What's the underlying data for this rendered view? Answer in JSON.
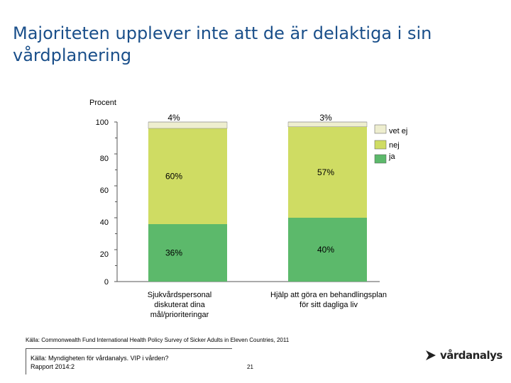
{
  "header": {
    "title": "Majoriteten upplever inte att de är delaktiga i sin vårdplanering"
  },
  "chart_data": {
    "type": "bar",
    "stacked": true,
    "title": "Majoriteten upplever inte att de är delaktiga i sin vårdplanering",
    "ylabel": "Procent",
    "xlabel": "",
    "ylim": [
      0,
      100
    ],
    "yticks": [
      "0",
      "20",
      "40",
      "60",
      "80",
      "100"
    ],
    "categories": [
      "Sjukvårdspersonal diskuterat dina mål/prioriteringar",
      "Hjälp att göra en behandlingsplan för sitt dagliga liv"
    ],
    "category_lines": [
      [
        "Sjukvårdspersonal",
        "diskuterat dina",
        "mål/prioriteringar"
      ],
      [
        "Hjälp att göra en behandlingsplan",
        "för sitt dagliga liv"
      ]
    ],
    "series": [
      {
        "name": "ja",
        "color": "#5cb96b",
        "values": [
          36,
          40
        ],
        "labels": [
          "36%",
          "40%"
        ]
      },
      {
        "name": "nej",
        "color": "#cfdc63",
        "values": [
          60,
          57
        ],
        "labels": [
          "60%",
          "57%"
        ]
      },
      {
        "name": "vet ej",
        "color": "#eeeecf",
        "values": [
          4,
          3
        ],
        "labels": [
          "4%",
          "3%"
        ]
      }
    ],
    "legend": {
      "position": "top-right",
      "entries": [
        "vet ej",
        "nej",
        "ja"
      ]
    }
  },
  "footer": {
    "source_note": "Källa: Commonwealth Fund International Health Policy Survey of Sicker Adults in Eleven Countries, 2011",
    "source_line1": "Källa: Myndigheten för vårdanalys. VIP i vården?",
    "source_line2": "Rapport 2014:2",
    "page_number": "21",
    "logo_text": "vårdanalys"
  }
}
